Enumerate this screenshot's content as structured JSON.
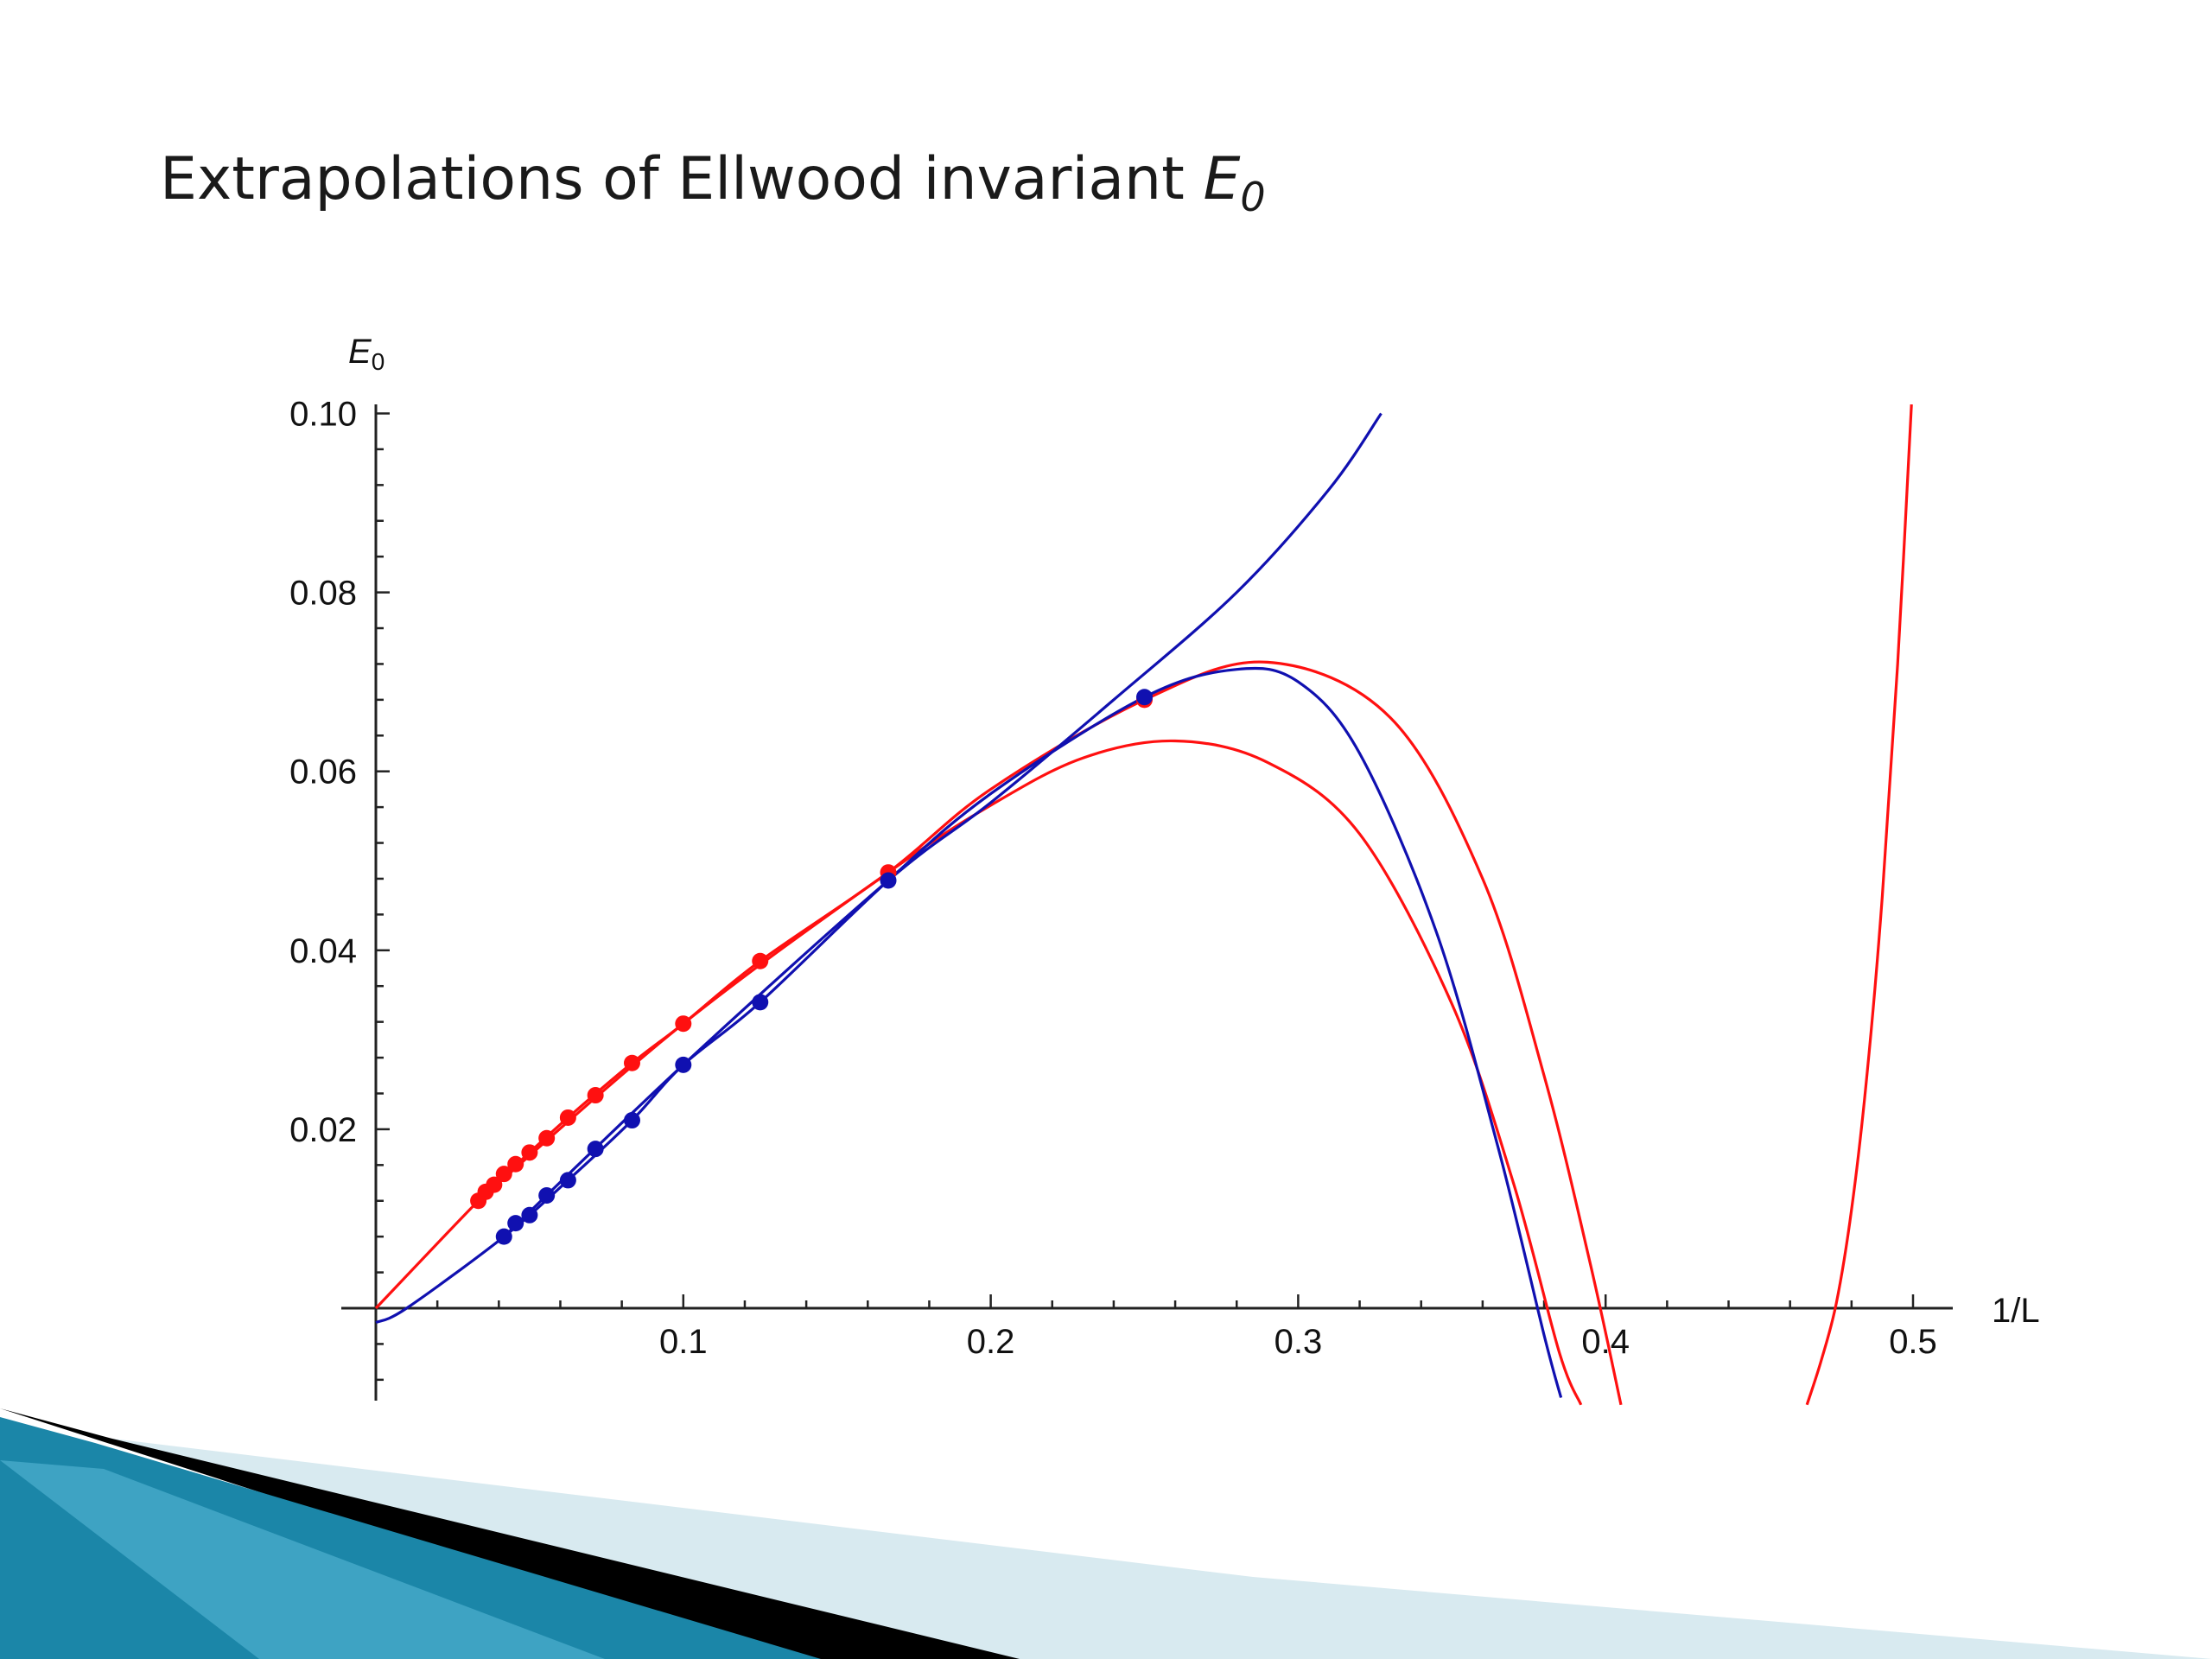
{
  "slide": {
    "title_text": "Extrapolations of Ellwood invariant ",
    "title_symbol": "E",
    "title_subscript": "0"
  },
  "colors": {
    "red": "#ff1010",
    "blue": "#1010b0",
    "axis": "#222222",
    "decor_dark": "#000000",
    "decor_teal": "#1b86a8",
    "decor_light": "#d8eaf0"
  },
  "chart_data": {
    "type": "line",
    "title": "",
    "xlabel": "1/L",
    "ylabel_symbol": "E",
    "ylabel_subscript": "0",
    "xlim": [
      0,
      0.5
    ],
    "ylim": [
      -0.01,
      0.1
    ],
    "xticks": [
      0.1,
      0.2,
      0.3,
      0.4,
      0.5
    ],
    "xtick_labels": [
      "0.1",
      "0.2",
      "0.3",
      "0.4",
      "0.5"
    ],
    "yticks": [
      0.02,
      0.04,
      0.06,
      0.08,
      0.1
    ],
    "ytick_labels": [
      "0.02",
      "0.04",
      "0.06",
      "0.08",
      "0.10"
    ],
    "grid": false,
    "legend": "none",
    "series": [
      {
        "color": "red",
        "kind": "points",
        "x": [
          0.03333,
          0.03571,
          0.03846,
          0.04167,
          0.04545,
          0.05,
          0.05556,
          0.0625,
          0.07143,
          0.08333,
          0.1,
          0.125,
          0.16667,
          0.25
        ],
        "y": [
          0.012,
          0.013,
          0.0138,
          0.015,
          0.0161,
          0.0174,
          0.019,
          0.0213,
          0.0238,
          0.0274,
          0.0318,
          0.0388,
          0.0487,
          0.068
        ]
      },
      {
        "color": "blue",
        "kind": "points",
        "x": [
          0.04167,
          0.04545,
          0.05,
          0.05556,
          0.0625,
          0.07143,
          0.08333,
          0.1,
          0.125,
          0.16667,
          0.25
        ],
        "y": [
          0.008,
          0.0095,
          0.0104,
          0.0126,
          0.0143,
          0.0178,
          0.021,
          0.0272,
          0.0342,
          0.0478,
          0.0683
        ]
      },
      {
        "color": "red",
        "kind": "curve",
        "x": [
          0,
          0.03333,
          0.05,
          0.0625,
          0.08333,
          0.1,
          0.125,
          0.16667,
          0.2,
          0.25,
          0.29,
          0.33,
          0.36,
          0.38,
          0.395,
          0.405
        ],
        "y": [
          0.0,
          0.012,
          0.0174,
          0.0213,
          0.0274,
          0.0318,
          0.0388,
          0.0487,
          0.058,
          0.068,
          0.0722,
          0.066,
          0.048,
          0.026,
          0.005,
          -0.0108
        ]
      },
      {
        "color": "red",
        "kind": "curve",
        "x": [
          0.03333,
          0.1,
          0.16667,
          0.2,
          0.23,
          0.26,
          0.29,
          0.32,
          0.35,
          0.37,
          0.385,
          0.392
        ],
        "y": [
          0.012,
          0.0318,
          0.0487,
          0.0562,
          0.0615,
          0.0634,
          0.061,
          0.053,
          0.034,
          0.014,
          -0.005,
          -0.0108
        ]
      },
      {
        "color": "red",
        "kind": "curve",
        "x": [
          0.4655,
          0.47,
          0.475,
          0.48,
          0.485,
          0.49,
          0.495,
          0.4995
        ],
        "y": [
          -0.0108,
          -0.006,
          0.0005,
          0.011,
          0.026,
          0.046,
          0.072,
          0.101
        ]
      },
      {
        "color": "blue",
        "kind": "curve",
        "x": [
          0,
          0.01,
          0.04167,
          0.0625,
          0.08333,
          0.1,
          0.125,
          0.16667,
          0.2,
          0.25,
          0.28,
          0.3,
          0.32,
          0.345,
          0.365,
          0.38,
          0.3855
        ],
        "y": [
          -0.0016,
          0.0,
          0.008,
          0.0143,
          0.021,
          0.0272,
          0.0342,
          0.0478,
          0.0575,
          0.0683,
          0.0714,
          0.07,
          0.062,
          0.042,
          0.018,
          -0.003,
          -0.01
        ]
      },
      {
        "color": "blue",
        "kind": "curve",
        "x": [
          0.04167,
          0.1,
          0.16667,
          0.2,
          0.24,
          0.28,
          0.31,
          0.327
        ],
        "y": [
          0.008,
          0.0272,
          0.0478,
          0.0565,
          0.068,
          0.08,
          0.0915,
          0.1
        ]
      }
    ]
  }
}
